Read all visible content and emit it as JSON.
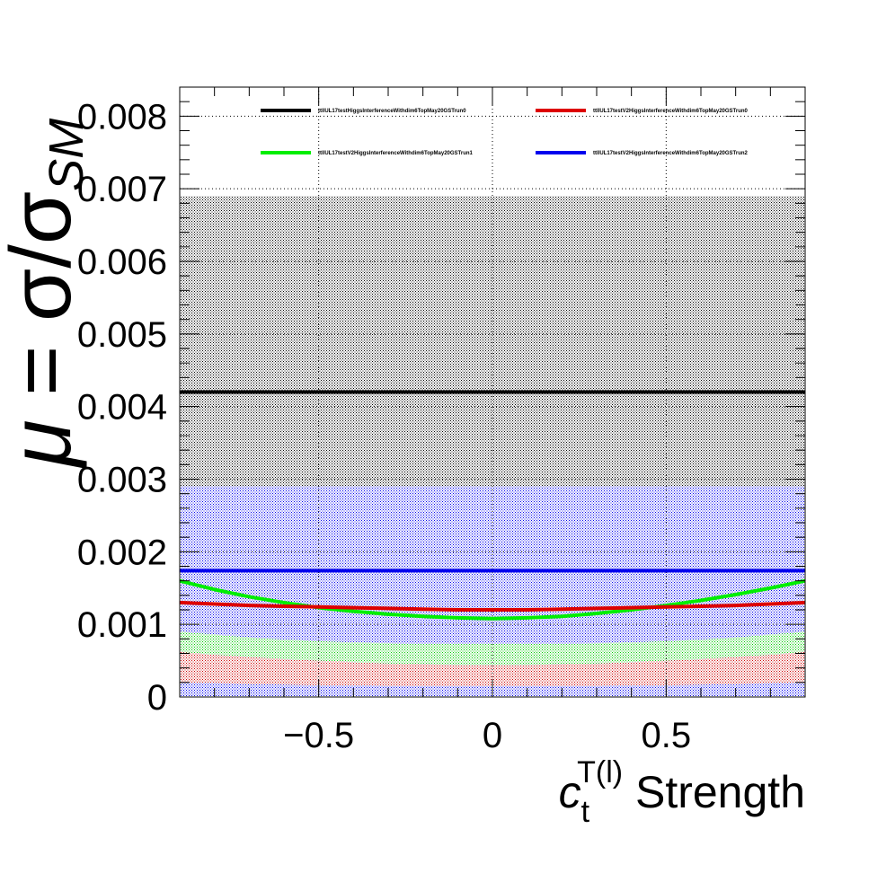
{
  "chart_data": {
    "type": "line",
    "title": "",
    "xlabel": {
      "main": "c",
      "sub": "t",
      "sup": "T(l)",
      "suffix": " Strength"
    },
    "ylabel": {
      "mu": "μ",
      "eq": " = σ/σ",
      "sub": "SM"
    },
    "xlim": [
      -0.9,
      0.9
    ],
    "ylim": [
      0,
      0.0084
    ],
    "x_ticks": [
      -0.5,
      0,
      0.5
    ],
    "x_tick_labels": [
      "−0.5",
      "0",
      "0.5"
    ],
    "y_ticks": [
      0,
      0.001,
      0.002,
      0.003,
      0.004,
      0.005,
      0.006,
      0.007,
      0.008
    ],
    "y_tick_labels": [
      "0",
      "0.001",
      "0.002",
      "0.003",
      "0.004",
      "0.005",
      "0.006",
      "0.007",
      "0.008"
    ],
    "grid": true,
    "legend_position": "top",
    "x": [
      -0.9,
      -0.8,
      -0.7,
      -0.6,
      -0.5,
      -0.4,
      -0.3,
      -0.2,
      -0.1,
      0.0,
      0.1,
      0.2,
      0.3,
      0.4,
      0.5,
      0.6,
      0.7,
      0.8,
      0.9
    ],
    "series": [
      {
        "name": "ttllUL17testHiggsInterferenceWithdim6TopMay20GSTrun0",
        "color": "#000000",
        "values": [
          0.0042,
          0.0042,
          0.0042,
          0.0042,
          0.0042,
          0.0042,
          0.0042,
          0.0042,
          0.0042,
          0.0042,
          0.0042,
          0.0042,
          0.0042,
          0.0042,
          0.0042,
          0.0042,
          0.0042,
          0.0042,
          0.0042
        ],
        "band_low": [
          0.0,
          0.0,
          0.0,
          0.0,
          0.0,
          0.0,
          0.0,
          0.0,
          0.0,
          0.0,
          0.0,
          0.0,
          0.0,
          0.0,
          0.0,
          0.0,
          0.0,
          0.0,
          0.0
        ],
        "band_high": [
          0.0069,
          0.0069,
          0.0069,
          0.0069,
          0.0069,
          0.0069,
          0.0069,
          0.0069,
          0.0069,
          0.0069,
          0.0069,
          0.0069,
          0.0069,
          0.0069,
          0.0069,
          0.0069,
          0.0069,
          0.0069,
          0.0069
        ]
      },
      {
        "name": "ttllUL17testV2HiggsInterferenceWithdim6TopMay20GSTrun2",
        "color": "#0000ee",
        "values": [
          0.00174,
          0.00174,
          0.00174,
          0.00174,
          0.00174,
          0.00174,
          0.00174,
          0.00174,
          0.00174,
          0.00174,
          0.00174,
          0.00174,
          0.00174,
          0.00174,
          0.00174,
          0.00174,
          0.00174,
          0.00174,
          0.00174
        ],
        "band_low": [
          0.0,
          0.0,
          0.0,
          0.0,
          0.0,
          0.0,
          0.0,
          0.0,
          0.0,
          0.0,
          0.0,
          0.0,
          0.0,
          0.0,
          0.0,
          0.0,
          0.0,
          0.0,
          0.0
        ],
        "band_high": [
          0.0029,
          0.0029,
          0.0029,
          0.0029,
          0.0029,
          0.0029,
          0.0029,
          0.0029,
          0.0029,
          0.0029,
          0.0029,
          0.0029,
          0.0029,
          0.0029,
          0.0029,
          0.0029,
          0.0029,
          0.0029,
          0.0029
        ]
      },
      {
        "name": "ttllUL17testV2HiggsInterferenceWithdim6TopMay20GSTrun1",
        "color": "#00ee00",
        "values": [
          0.0016,
          0.00148,
          0.00138,
          0.0013,
          0.00123,
          0.00118,
          0.00114,
          0.00111,
          0.00109,
          0.00108,
          0.00109,
          0.00111,
          0.00115,
          0.0012,
          0.00126,
          0.00133,
          0.00141,
          0.0015,
          0.0016
        ],
        "band_low": [
          0.00062,
          0.00058,
          0.00055,
          0.00052,
          0.0005,
          0.00048,
          0.00046,
          0.00045,
          0.00044,
          0.00044,
          0.00044,
          0.00045,
          0.00046,
          0.00048,
          0.0005,
          0.00052,
          0.00055,
          0.00058,
          0.00062
        ],
        "band_high": [
          0.0009,
          0.00086,
          0.00082,
          0.00079,
          0.00077,
          0.00075,
          0.00074,
          0.00073,
          0.00073,
          0.00073,
          0.00073,
          0.00073,
          0.00074,
          0.00075,
          0.00077,
          0.00079,
          0.00082,
          0.00086,
          0.0009
        ]
      },
      {
        "name": "ttllUL17testV2HiggsInterferenceWithdim6TopMay20GSTrun0",
        "color": "#dd0000",
        "values": [
          0.0013,
          0.00128,
          0.00126,
          0.00125,
          0.00124,
          0.00123,
          0.00122,
          0.00121,
          0.0012,
          0.0012,
          0.0012,
          0.00121,
          0.00122,
          0.00123,
          0.00124,
          0.00125,
          0.00126,
          0.00128,
          0.0013
        ],
        "band_low": [
          0.0002,
          0.00019,
          0.00018,
          0.00017,
          0.00016,
          0.00016,
          0.00015,
          0.00015,
          0.00015,
          0.00015,
          0.00015,
          0.00015,
          0.00015,
          0.00016,
          0.00016,
          0.00017,
          0.00018,
          0.00019,
          0.0002
        ],
        "band_high": [
          0.00062,
          0.00058,
          0.00055,
          0.00052,
          0.0005,
          0.00048,
          0.00046,
          0.00045,
          0.00044,
          0.00044,
          0.00044,
          0.00045,
          0.00046,
          0.00048,
          0.0005,
          0.00052,
          0.00055,
          0.00058,
          0.00062
        ]
      }
    ],
    "legend_order": [
      0,
      3,
      2,
      1
    ]
  }
}
